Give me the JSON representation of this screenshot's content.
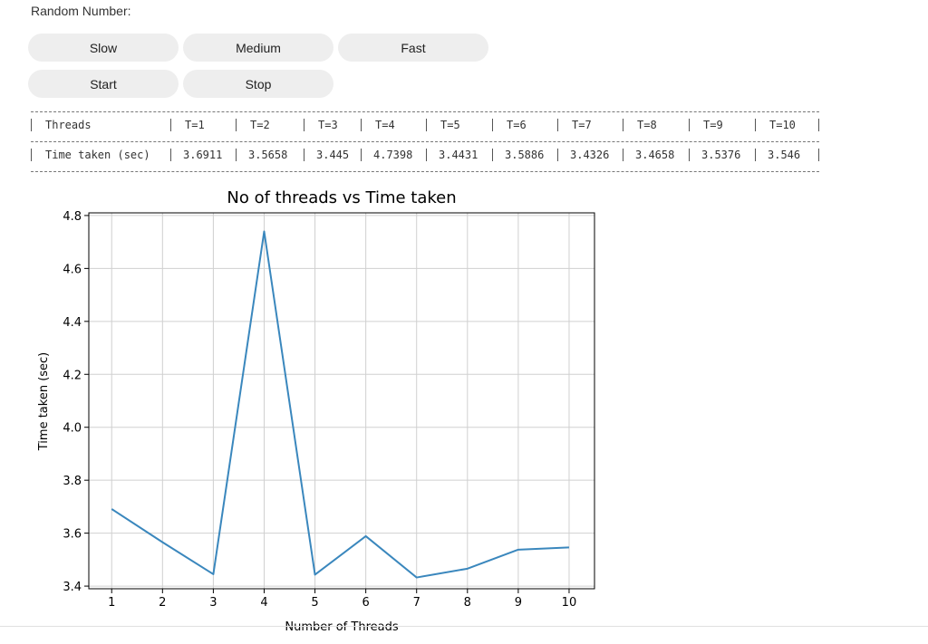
{
  "header": {
    "random_label": "Random Number:"
  },
  "controls": {
    "slow_label": "Slow",
    "medium_label": "Medium",
    "fast_label": "Fast",
    "start_label": "Start",
    "stop_label": "Stop"
  },
  "table": {
    "row_headers": [
      "Threads",
      "Time taken (sec)"
    ],
    "columns": [
      "T=1",
      "T=2",
      "T=3",
      "T=4",
      "T=5",
      "T=6",
      "T=7",
      "T=8",
      "T=9",
      "T=10"
    ],
    "values": [
      "3.6911",
      "3.5658",
      "3.445",
      "4.7398",
      "3.4431",
      "3.5886",
      "3.4326",
      "3.4658",
      "3.5376",
      "3.546"
    ]
  },
  "chart_data": {
    "type": "line",
    "title": "No of threads vs Time taken",
    "xlabel": "Number of Threads",
    "ylabel": "Time taken (sec)",
    "x": [
      1,
      2,
      3,
      4,
      5,
      6,
      7,
      8,
      9,
      10
    ],
    "series": [
      {
        "values": [
          3.6911,
          3.5658,
          3.445,
          4.7398,
          3.4431,
          3.5886,
          3.4326,
          3.4658,
          3.5376,
          3.546
        ],
        "color": "#3a87bd"
      }
    ],
    "xlim": [
      0.55,
      10.5
    ],
    "ylim": [
      3.39,
      4.81
    ],
    "xticks": [
      1,
      2,
      3,
      4,
      5,
      6,
      7,
      8,
      9,
      10
    ],
    "yticks": [
      3.4,
      3.6,
      3.8,
      4.0,
      4.2,
      4.4,
      4.6,
      4.8
    ],
    "ytick_labels": [
      "3.4",
      "3.6",
      "3.8",
      "4.0",
      "4.2",
      "4.4",
      "4.6",
      "4.8"
    ],
    "grid": true
  }
}
